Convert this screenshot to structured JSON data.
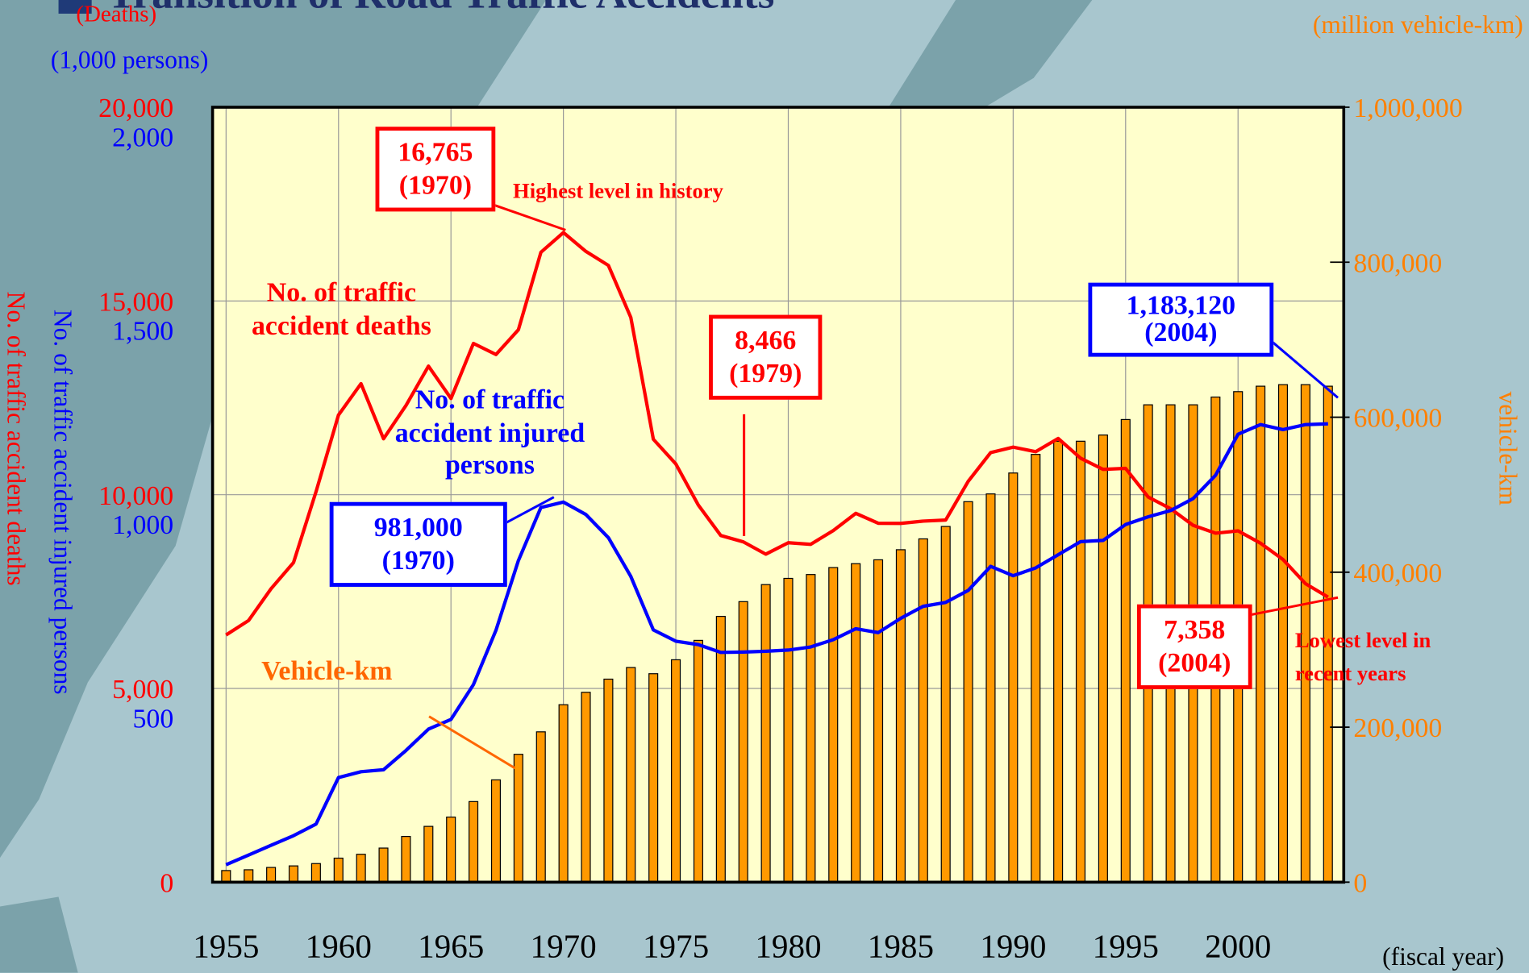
{
  "chart_data": {
    "type": "combo",
    "title": "Transition of Road Traffic Accidents",
    "x_label": "(fiscal year)",
    "y_unit": "(Deaths)",
    "y3_unit": "(1,000 persons)",
    "y2_unit": "(million vehicle-km)",
    "y_label": "No. of traffic accident deaths",
    "y3_label": "No. of traffic accident injured persons",
    "y2_label": "vehicle-km",
    "grid": true,
    "x": [
      1955,
      1956,
      1957,
      1958,
      1959,
      1960,
      1961,
      1962,
      1963,
      1964,
      1965,
      1966,
      1967,
      1968,
      1969,
      1970,
      1971,
      1972,
      1973,
      1974,
      1975,
      1976,
      1977,
      1978,
      1979,
      1980,
      1981,
      1982,
      1983,
      1984,
      1985,
      1986,
      1987,
      1988,
      1989,
      1990,
      1991,
      1992,
      1993,
      1994,
      1995,
      1996,
      1997,
      1998,
      1999,
      2000,
      2001,
      2002,
      2003,
      2004
    ],
    "xlim": [
      1954.4,
      2004.7
    ],
    "xticks": [
      1955,
      1960,
      1965,
      1970,
      1975,
      1980,
      1985,
      1990,
      1995,
      2000
    ],
    "ylim": [
      0,
      20000
    ],
    "yticks": [
      0,
      {
        "value": 5000,
        "label": "5,000"
      },
      {
        "value": 10000,
        "label": "10,000"
      },
      {
        "value": 15000,
        "label": "15,000"
      },
      {
        "value": 20000,
        "label": "20,000"
      }
    ],
    "y3lim": [
      0,
      2000
    ],
    "y3ticks": [
      500,
      {
        "value": 1000,
        "label": "1,000"
      },
      {
        "value": 1500,
        "label": "1,500"
      },
      {
        "value": 2000,
        "label": "2,000"
      }
    ],
    "y2lim": [
      0,
      1000000
    ],
    "y2ticks": [
      0,
      {
        "value": 200000,
        "label": "200,000"
      },
      {
        "value": 400000,
        "label": "400,000"
      },
      {
        "value": 600000,
        "label": "600,000"
      },
      {
        "value": 800000,
        "label": "800,000"
      },
      {
        "value": 1000000,
        "label": "1,000,000"
      }
    ],
    "series": [
      {
        "name": "Vehicle-km",
        "type": "bar",
        "axis": "y2",
        "color": "#ff9900",
        "values": [
          15000,
          16000,
          19000,
          21000,
          24000,
          31000,
          36000,
          44000,
          59000,
          72000,
          84000,
          104000,
          132000,
          165000,
          194000,
          229000,
          245000,
          262000,
          277000,
          269000,
          287000,
          312000,
          343000,
          362000,
          384000,
          392000,
          397000,
          406000,
          411000,
          416000,
          429000,
          443000,
          459000,
          491000,
          501000,
          528000,
          552000,
          569000,
          569000,
          577000,
          597000,
          616000,
          616000,
          616000,
          626000,
          633000,
          640000,
          642000,
          642000,
          640000
        ]
      },
      {
        "name": "No. of traffic\naccident deaths",
        "type": "line",
        "axis": "y",
        "color": "#ff0000",
        "values": [
          6379,
          6751,
          7575,
          8248,
          10079,
          12055,
          12865,
          11445,
          12301,
          13318,
          12484,
          13904,
          13618,
          14256,
          16257,
          16765,
          16278,
          15918,
          14574,
          11432,
          10792,
          9734,
          8945,
          8783,
          8466,
          8760,
          8719,
          9073,
          9520,
          9262,
          9261,
          9317,
          9347,
          10344,
          11086,
          11227,
          11109,
          11452,
          10942,
          10653,
          10679,
          9942,
          9640,
          9211,
          9006,
          9066,
          8747,
          8326,
          7702,
          7358
        ]
      },
      {
        "name": "No. of traffic\naccident injured\npersons",
        "type": "line",
        "axis": "y3",
        "color": "#0000ff",
        "values": [
          45,
          70,
          95,
          120,
          150,
          270,
          285,
          290,
          340,
          395,
          420,
          510,
          650,
          830,
          967,
          981,
          949,
          889,
          789,
          651,
          622,
          613,
          593,
          594,
          596,
          599,
          607,
          626,
          654,
          644,
          681,
          712,
          722,
          753,
          815,
          791,
          811,
          845,
          879,
          882,
          923,
          943,
          959,
          990,
          1050,
          1156,
          1181,
          1168,
          1181,
          1183
        ]
      }
    ],
    "annotations": [
      {
        "text": "16,765\n(1970)",
        "color": "#ff0000",
        "boxed": true
      },
      {
        "text": "Highest level in history",
        "color": "#ff0000",
        "boxed": false
      },
      {
        "text": "8,466\n(1979)",
        "color": "#ff0000",
        "boxed": true
      },
      {
        "text": "1,183,120\n(2004)",
        "color": "#0000ff",
        "boxed": true
      },
      {
        "text": "981,000\n(1970)",
        "color": "#0000ff",
        "boxed": true
      },
      {
        "text": "7,358\n(2004)",
        "color": "#ff0000",
        "boxed": true
      },
      {
        "text": "Lowest level in\nrecent years",
        "color": "#ff0000",
        "boxed": false
      }
    ]
  }
}
